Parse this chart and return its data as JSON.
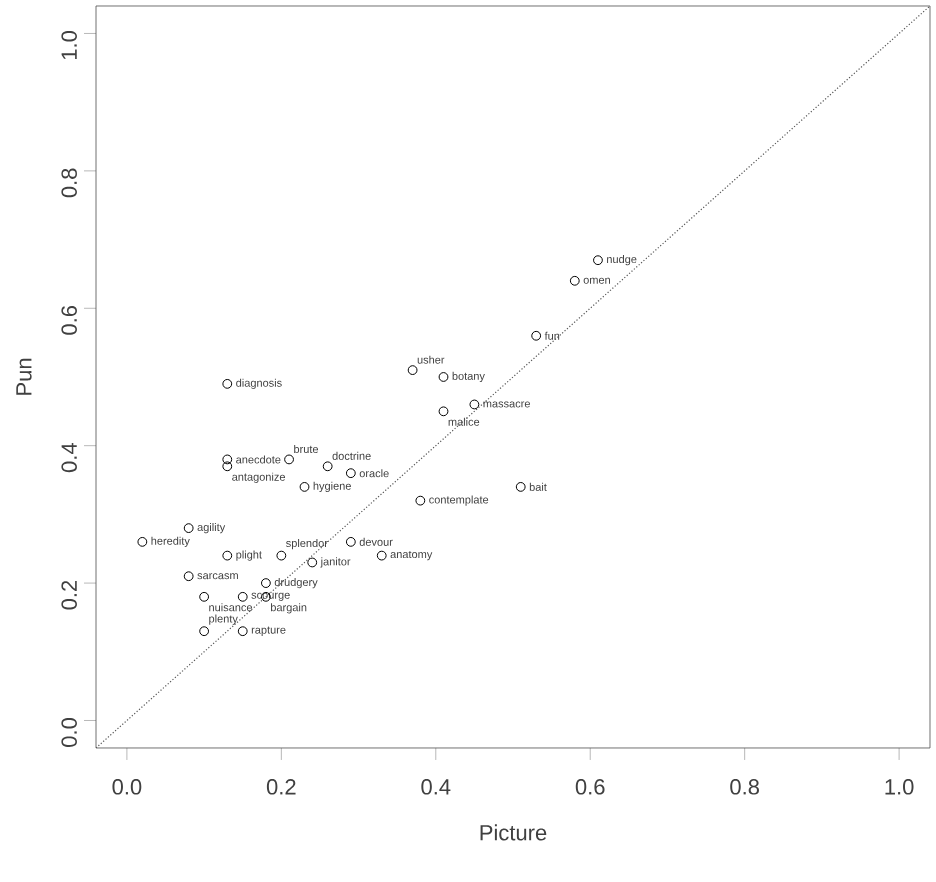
{
  "chart_data": {
    "type": "scatter",
    "xlabel": "Picture",
    "ylabel": "Pun",
    "xlim": [
      -0.04,
      1.04
    ],
    "ylim": [
      -0.04,
      1.04
    ],
    "xticks": [
      {
        "value": 0,
        "label": "0.0"
      },
      {
        "value": 0.2,
        "label": "0.2"
      },
      {
        "value": 0.4,
        "label": "0.4"
      },
      {
        "value": 0.6,
        "label": "0.6"
      },
      {
        "value": 0.8,
        "label": "0.8"
      },
      {
        "value": 1,
        "label": "1.0"
      }
    ],
    "yticks": [
      {
        "value": 0,
        "label": "0.0"
      },
      {
        "value": 0.2,
        "label": "0.2"
      },
      {
        "value": 0.4,
        "label": "0.4"
      },
      {
        "value": 0.6,
        "label": "0.6"
      },
      {
        "value": 0.8,
        "label": "0.8"
      },
      {
        "value": 1,
        "label": "1.0"
      }
    ],
    "marker": "circle",
    "series": [
      {
        "type": "line",
        "color": "#555555",
        "line_style": "dotted",
        "marker": "none",
        "x": [
          -0.04,
          1.04
        ],
        "values": [
          -0.04,
          1.04
        ]
      },
      {
        "type": "scatter",
        "color": "#000000",
        "x": [
          0.13,
          0.37,
          0.41,
          0.45,
          0.41,
          0.13,
          0.21,
          0.13,
          0.26,
          0.29,
          0.23,
          0.51,
          0.38,
          0.08,
          0.02,
          0.29,
          0.13,
          0.2,
          0.24,
          0.33,
          0.08,
          0.18,
          0.1,
          0.15,
          0.18,
          0.1,
          0.15,
          0.61,
          0.58,
          0.53
        ],
        "values": [
          0.49,
          0.51,
          0.5,
          0.46,
          0.45,
          0.38,
          0.38,
          0.37,
          0.37,
          0.36,
          0.34,
          0.34,
          0.32,
          0.28,
          0.26,
          0.26,
          0.24,
          0.24,
          0.23,
          0.24,
          0.21,
          0.2,
          0.18,
          0.18,
          0.18,
          0.13,
          0.13,
          0.67,
          0.64,
          0.56
        ]
      }
    ],
    "annotations": [
      {
        "text": "diagnosis",
        "x": 0.13,
        "y": 0.49
      },
      {
        "text": "usher",
        "x": 0.37,
        "y": 0.51
      },
      {
        "text": "botany",
        "x": 0.41,
        "y": 0.5
      },
      {
        "text": "massacre",
        "x": 0.45,
        "y": 0.46
      },
      {
        "text": "malice",
        "x": 0.41,
        "y": 0.45
      },
      {
        "text": "anecdote",
        "x": 0.13,
        "y": 0.38
      },
      {
        "text": "brute",
        "x": 0.21,
        "y": 0.38
      },
      {
        "text": "antagonize",
        "x": 0.13,
        "y": 0.37
      },
      {
        "text": "doctrine",
        "x": 0.26,
        "y": 0.37
      },
      {
        "text": "oracle",
        "x": 0.29,
        "y": 0.36
      },
      {
        "text": "hygiene",
        "x": 0.23,
        "y": 0.34
      },
      {
        "text": "bait",
        "x": 0.51,
        "y": 0.34
      },
      {
        "text": "contemplate",
        "x": 0.38,
        "y": 0.32
      },
      {
        "text": "agility",
        "x": 0.08,
        "y": 0.28
      },
      {
        "text": "heredity",
        "x": 0.02,
        "y": 0.26
      },
      {
        "text": "devour",
        "x": 0.29,
        "y": 0.26
      },
      {
        "text": "plight",
        "x": 0.13,
        "y": 0.24
      },
      {
        "text": "splendor",
        "x": 0.2,
        "y": 0.24
      },
      {
        "text": "janitor",
        "x": 0.24,
        "y": 0.23
      },
      {
        "text": "anatomy",
        "x": 0.33,
        "y": 0.24
      },
      {
        "text": "sarcasm",
        "x": 0.08,
        "y": 0.21
      },
      {
        "text": "drudgery",
        "x": 0.18,
        "y": 0.2
      },
      {
        "text": "nuisance",
        "x": 0.1,
        "y": 0.18
      },
      {
        "text": "scourge",
        "x": 0.15,
        "y": 0.18
      },
      {
        "text": "bargain",
        "x": 0.18,
        "y": 0.18
      },
      {
        "text": "plenty",
        "x": 0.1,
        "y": 0.13
      },
      {
        "text": "rapture",
        "x": 0.15,
        "y": 0.13
      },
      {
        "text": "nudge",
        "x": 0.61,
        "y": 0.67
      },
      {
        "text": "omen",
        "x": 0.58,
        "y": 0.64
      },
      {
        "text": "fun",
        "x": 0.53,
        "y": 0.56
      }
    ]
  }
}
